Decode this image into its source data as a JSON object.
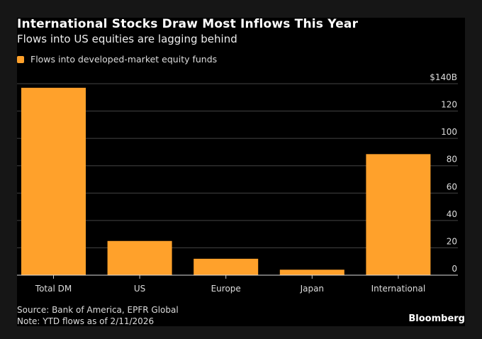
{
  "chart_data": {
    "type": "bar",
    "title": "International Stocks Draw Most Inflows This Year",
    "subtitle": "Flows into US equities are lagging behind",
    "legend": "Flows into developed-market equity funds",
    "legend_placement": "top-left",
    "categories": [
      "Total DM",
      "US",
      "Europe",
      "Japan",
      "International"
    ],
    "series": [
      {
        "name": "Flows into developed-market equity funds",
        "values": [
          137,
          25,
          12,
          4,
          88.5
        ],
        "color": "#ffa12b"
      }
    ],
    "ylim": [
      0,
      140
    ],
    "yticks": [
      0,
      20,
      40,
      60,
      80,
      100,
      120,
      140
    ],
    "ytick_labels": [
      "0",
      "20",
      "40",
      "60",
      "80",
      "100",
      "120",
      "$140B"
    ],
    "y_axis_side": "right",
    "grid": true,
    "xlabel": "",
    "ylabel": ""
  },
  "footer": {
    "source": "Source: Bank of America, EPFR Global",
    "note": "Note: YTD flows as of 2/11/2026",
    "brand": "Bloomberg"
  },
  "colors": {
    "background": "#000000",
    "frame": "#161616",
    "bar": "#ffa12b",
    "grid": "#444444"
  }
}
